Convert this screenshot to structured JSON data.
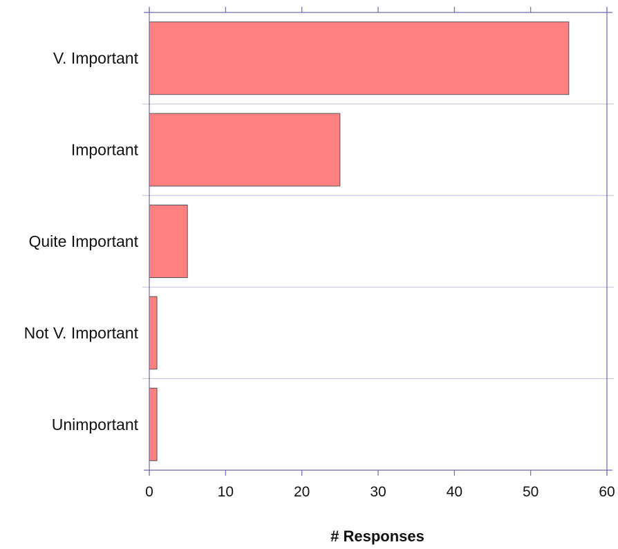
{
  "chart_data": {
    "type": "bar",
    "orientation": "horizontal",
    "categories": [
      "V. Important",
      "Important",
      "Quite Important",
      "Not V. Important",
      "Unimportant"
    ],
    "values": [
      55,
      25,
      5,
      1,
      1
    ],
    "title": "",
    "xlabel": "# Responses",
    "ylabel": "",
    "xlim": [
      0,
      60
    ],
    "xticks": [
      0,
      10,
      20,
      30,
      40,
      50,
      60
    ],
    "grid": true,
    "legend": "none",
    "colors": {
      "bar_fill": "#ff8080",
      "bar_stroke": "#555555",
      "axis": "#6a6aa8",
      "grid": "#c0c0dc"
    }
  }
}
